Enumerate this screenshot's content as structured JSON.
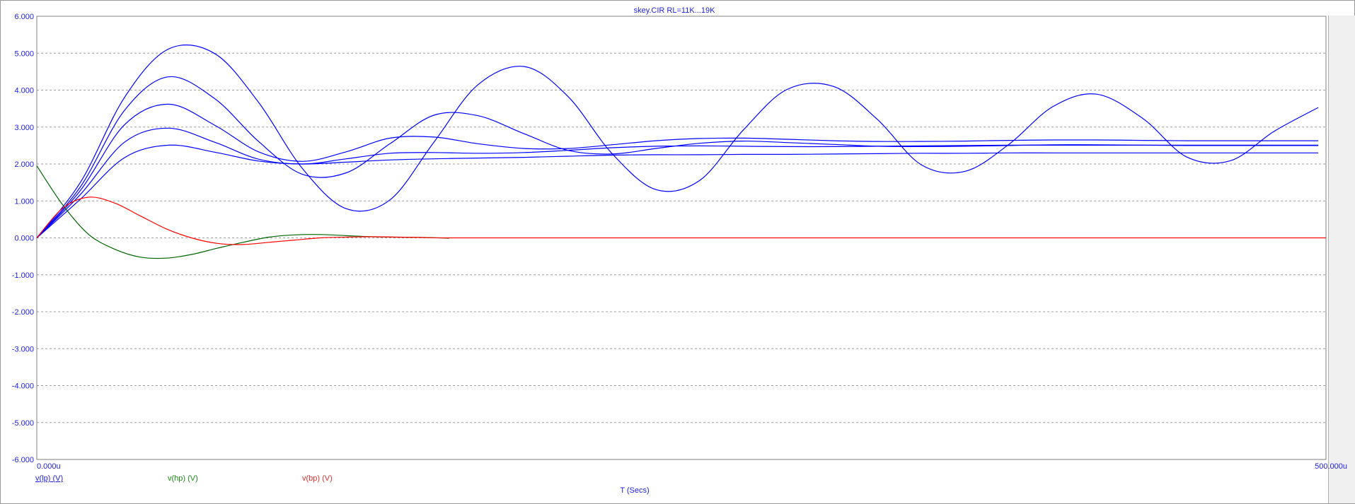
{
  "chart_data": {
    "type": "line",
    "title": "skey.CIR RL=11K...19K",
    "xlabel": "T (Secs)",
    "x_ticks": [
      "0.000u",
      "500.000u"
    ],
    "xlim": [
      0,
      500
    ],
    "ylim": [
      -6,
      6
    ],
    "y_ticks": [
      "6.000",
      "5.000",
      "4.000",
      "3.000",
      "2.000",
      "1.000",
      "0.000",
      "-1.000",
      "-2.000",
      "-3.000",
      "-4.000",
      "-5.000",
      "-6.000"
    ],
    "grid": true,
    "legend": [
      {
        "label": "v(lp) (V)",
        "color": "#2020e0",
        "underline": true
      },
      {
        "label": "v(hp) (V)",
        "color": "#1a8a1a"
      },
      {
        "label": "v(bp) (V)",
        "color": "#e03030"
      }
    ],
    "colors": {
      "lp": "#0000ff",
      "hp": "#006400",
      "bp": "#ff0000",
      "axis_text": "#2020e0",
      "grid": "#a0a0a0"
    },
    "series": [
      {
        "group": "lp",
        "color": "#0000ff",
        "x": [
          0,
          17,
          34,
          51,
          69,
          86,
          103,
          120,
          137,
          154,
          171,
          189,
          206,
          223,
          240,
          257,
          274,
          291,
          309,
          326,
          343,
          360,
          377,
          394,
          411,
          429,
          446,
          463,
          480,
          497
        ],
        "y": [
          0.0,
          1.51,
          3.8,
          5.11,
          4.99,
          3.67,
          1.88,
          0.79,
          1.03,
          2.59,
          4.14,
          4.64,
          3.83,
          2.29,
          1.31,
          1.55,
          2.92,
          4.02,
          4.1,
          3.21,
          1.98,
          1.8,
          2.53,
          3.55,
          3.89,
          3.23,
          2.19,
          2.09,
          2.89,
          3.53
        ]
      },
      {
        "group": "lp",
        "color": "#0000ff",
        "x": [
          0,
          17,
          34,
          51,
          69,
          86,
          103,
          120,
          137,
          154,
          171,
          189,
          206,
          223,
          240,
          257,
          274,
          291,
          309,
          326,
          343,
          360,
          377,
          394,
          411,
          429,
          446,
          463,
          480,
          497
        ],
        "y": [
          0.0,
          1.39,
          3.45,
          4.36,
          3.77,
          2.61,
          1.72,
          1.76,
          2.55,
          3.32,
          3.31,
          2.82,
          2.37,
          2.27,
          2.42,
          2.56,
          2.62,
          2.58,
          2.53,
          2.48,
          2.47,
          2.48,
          2.5,
          2.52,
          2.52,
          2.51,
          2.5,
          2.5,
          2.5,
          2.5
        ]
      },
      {
        "group": "lp",
        "color": "#0000ff",
        "x": [
          0,
          17,
          34,
          51,
          69,
          86,
          103,
          120,
          137,
          154,
          171,
          189,
          206,
          223,
          240,
          257,
          274,
          291,
          309,
          326,
          343,
          360,
          377,
          394,
          411,
          429,
          446,
          463,
          480,
          497
        ],
        "y": [
          0.0,
          1.29,
          3.06,
          3.62,
          3.05,
          2.33,
          2.07,
          2.33,
          2.7,
          2.73,
          2.55,
          2.42,
          2.42,
          2.52,
          2.63,
          2.69,
          2.7,
          2.67,
          2.63,
          2.61,
          2.61,
          2.62,
          2.64,
          2.65,
          2.65,
          2.64,
          2.63,
          2.63,
          2.63,
          2.63
        ]
      },
      {
        "group": "lp",
        "color": "#0000ff",
        "x": [
          0,
          17,
          34,
          51,
          69,
          86,
          103,
          120,
          137,
          154,
          171,
          189,
          206,
          223,
          240,
          257,
          274,
          291,
          309,
          326,
          343,
          360,
          377,
          394,
          411,
          429,
          446,
          463,
          480,
          497
        ],
        "y": [
          0.0,
          1.18,
          2.59,
          2.97,
          2.59,
          2.13,
          2.0,
          2.14,
          2.29,
          2.31,
          2.29,
          2.31,
          2.37,
          2.44,
          2.48,
          2.49,
          2.48,
          2.47,
          2.47,
          2.48,
          2.49,
          2.5,
          2.51,
          2.51,
          2.51,
          2.51,
          2.51,
          2.51,
          2.51,
          2.51
        ]
      },
      {
        "group": "lp",
        "color": "#0000ff",
        "x": [
          0,
          17,
          34,
          51,
          69,
          86,
          103,
          120,
          137,
          154,
          171,
          189,
          206,
          223,
          240,
          257,
          274,
          291,
          309,
          326,
          343,
          360,
          377,
          394,
          411,
          429,
          446,
          463,
          480,
          497
        ],
        "y": [
          0.0,
          1.05,
          2.17,
          2.51,
          2.32,
          2.08,
          2.0,
          2.05,
          2.11,
          2.14,
          2.16,
          2.18,
          2.21,
          2.24,
          2.25,
          2.25,
          2.26,
          2.26,
          2.27,
          2.28,
          2.29,
          2.29,
          2.3,
          2.3,
          2.3,
          2.3,
          2.3,
          2.3,
          2.3,
          2.3
        ]
      },
      {
        "group": "hp",
        "color": "#006400",
        "x": [
          0,
          10,
          20,
          30,
          40,
          50,
          60,
          70,
          80,
          90,
          100,
          110,
          120,
          130,
          140,
          150,
          160
        ],
        "y": [
          1.95,
          0.9,
          0.1,
          -0.3,
          -0.52,
          -0.55,
          -0.45,
          -0.28,
          -0.12,
          0.02,
          0.08,
          0.09,
          0.06,
          0.03,
          0.02,
          0.01,
          -0.01
        ]
      },
      {
        "group": "bp",
        "color": "#ff0000",
        "x": [
          0,
          10,
          20,
          30,
          40,
          50,
          60,
          70,
          80,
          90,
          100,
          110,
          120,
          130,
          140,
          150,
          160,
          200,
          300,
          400,
          500
        ],
        "y": [
          0.0,
          0.8,
          1.1,
          0.95,
          0.6,
          0.25,
          0.0,
          -0.15,
          -0.18,
          -0.12,
          -0.06,
          0.0,
          0.02,
          0.03,
          0.02,
          0.01,
          0.0,
          0.0,
          0.0,
          0.0,
          0.0
        ]
      }
    ]
  }
}
